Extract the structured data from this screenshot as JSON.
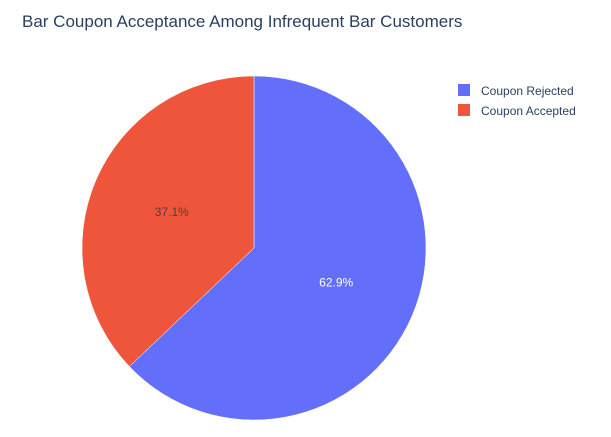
{
  "chart_data": {
    "type": "pie",
    "title": "Bar Coupon Acceptance Among Infrequent Bar Customers",
    "categories": [
      "Coupon Rejected",
      "Coupon Accepted"
    ],
    "values": [
      62.9,
      37.1
    ],
    "value_labels": [
      "62.9%",
      "37.1%"
    ],
    "colors": [
      "#636efa",
      "#ef553b"
    ],
    "label_colors": [
      "#ffffff",
      "#444444"
    ],
    "direction": "clockwise",
    "start_angle": "top",
    "legend_position": "top-right"
  }
}
